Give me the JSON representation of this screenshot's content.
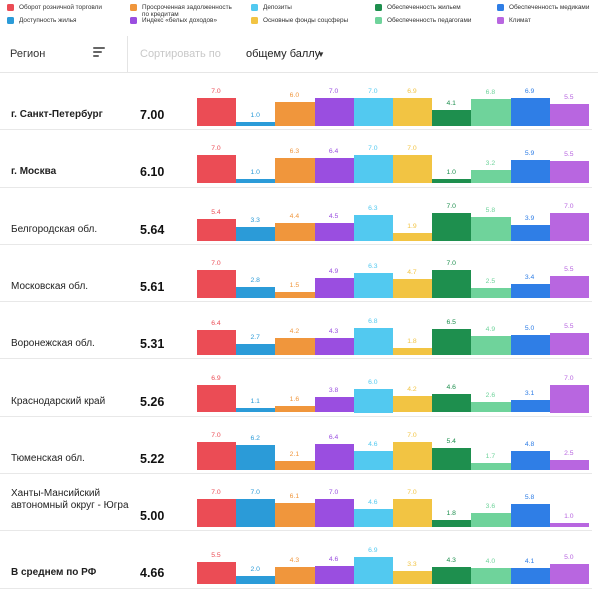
{
  "legend": [
    {
      "label": "Оборот розничной торговли",
      "color": "#eb4c55"
    },
    {
      "label": "Просроченная задолженность по кредитам",
      "color": "#f0963c"
    },
    {
      "label": "Депозиты",
      "color": "#52c9f0"
    },
    {
      "label": "Обеспеченность жильем",
      "color": "#1e8f4e"
    },
    {
      "label": "Обеспеченность медиками",
      "color": "#2f7ee6"
    },
    {
      "label": "Доступность жилья",
      "color": "#2b9bd8"
    },
    {
      "label": "Индекс «белых доходов»",
      "color": "#9a4ee0"
    },
    {
      "label": "Основные фонды соцсферы",
      "color": "#f2c443"
    },
    {
      "label": "Обеспеченность педагогами",
      "color": "#6fd39b"
    },
    {
      "label": "Климат",
      "color": "#b866e0"
    }
  ],
  "header": {
    "region_label": "Регион",
    "filter_icon": "filter-icon",
    "sort_placeholder": "Сортировать по",
    "sort_value": "общему баллу",
    "chevron_icon": "chevron-down-icon"
  },
  "chart_data": {
    "type": "bar",
    "categories": [
      "Оборот розничной торговли",
      "Доступность жилья",
      "Просроченная задолженность по кредитам",
      "Индекс «белых доходов»",
      "Депозиты",
      "Основные фонды соцсферы",
      "Обеспеченность жильем",
      "Обеспеченность педагогами",
      "Обеспеченность медиками",
      "Климат"
    ],
    "colors": [
      "#eb4c55",
      "#2b9bd8",
      "#f0963c",
      "#9a4ee0",
      "#52c9f0",
      "#f2c443",
      "#1e8f4e",
      "#6fd39b",
      "#2f7ee6",
      "#b866e0"
    ],
    "ylim": [
      0,
      7
    ],
    "rows": [
      {
        "region": "г. Санкт-Петербург",
        "score": "7.00",
        "bold": true,
        "values": [
          7.0,
          1.0,
          6.0,
          7.0,
          7.0,
          6.9,
          4.1,
          6.8,
          6.9,
          5.5
        ],
        "labels": [
          "7.0",
          "1.0",
          "6.0",
          "7.0",
          "7.0",
          "6.9",
          "4.1",
          "6.8",
          "6.9",
          "5.5"
        ]
      },
      {
        "region": "г. Москва",
        "score": "6.10",
        "bold": true,
        "values": [
          7.0,
          1.0,
          6.3,
          6.4,
          7.0,
          7.0,
          1.0,
          3.2,
          5.9,
          5.5
        ],
        "labels": [
          "7.0",
          "1.0",
          "6.3",
          "6.4",
          "7.0",
          "7.0",
          "1.0",
          "3.2",
          "5.9",
          "5.5"
        ]
      },
      {
        "region": "Белгородская обл.",
        "score": "5.64",
        "bold": false,
        "values": [
          5.4,
          3.3,
          4.4,
          4.5,
          6.3,
          1.9,
          7.0,
          5.8,
          3.9,
          7.0
        ],
        "labels": [
          "5.4",
          "3.3",
          "4.4",
          "4.5",
          "6.3",
          "1.9",
          "7.0",
          "5.8",
          "3.9",
          "7.0"
        ]
      },
      {
        "region": "Московская обл.",
        "score": "5.61",
        "bold": false,
        "values": [
          7.0,
          2.8,
          1.5,
          4.9,
          6.3,
          4.7,
          7.0,
          2.5,
          3.4,
          5.5
        ],
        "labels": [
          "7.0",
          "2.8",
          "1.5",
          "4.9",
          "6.3",
          "4.7",
          "7.0",
          "2.5",
          "3.4",
          "5.5"
        ]
      },
      {
        "region": "Воронежская обл.",
        "score": "5.31",
        "bold": false,
        "values": [
          6.4,
          2.7,
          4.2,
          4.3,
          6.8,
          1.8,
          6.5,
          4.9,
          5.0,
          5.5
        ],
        "labels": [
          "6.4",
          "2.7",
          "4.2",
          "4.3",
          "6.8",
          "1.8",
          "6.5",
          "4.9",
          "5.0",
          "5.5"
        ]
      },
      {
        "region": "Краснодарский край",
        "score": "5.26",
        "bold": false,
        "values": [
          6.9,
          1.1,
          1.6,
          3.8,
          6.0,
          4.2,
          4.6,
          2.6,
          3.1,
          7.0
        ],
        "labels": [
          "6.9",
          "1.1",
          "1.6",
          "3.8",
          "6.0",
          "4.2",
          "4.6",
          "2.6",
          "3.1",
          "7.0"
        ]
      },
      {
        "region": "Тюменская обл.",
        "score": "5.22",
        "bold": false,
        "values": [
          7.0,
          6.2,
          2.1,
          6.4,
          4.6,
          7.0,
          5.4,
          1.7,
          4.8,
          2.5
        ],
        "labels": [
          "7.0",
          "6.2",
          "2.1",
          "6.4",
          "4.6",
          "7.0",
          "5.4",
          "1.7",
          "4.8",
          "2.5"
        ]
      },
      {
        "region": "Ханты-Мансийский автономный округ - Югра",
        "score": "5.00",
        "bold": false,
        "values": [
          7.0,
          7.0,
          6.1,
          7.0,
          4.6,
          7.0,
          1.8,
          3.6,
          5.8,
          1.0
        ],
        "labels": [
          "7.0",
          "7.0",
          "6.1",
          "7.0",
          "4.6",
          "7.0",
          "1.8",
          "3.6",
          "5.8",
          "1.0"
        ]
      },
      {
        "region": "В среднем по РФ",
        "score": "4.66",
        "bold": true,
        "values": [
          5.5,
          2.0,
          4.3,
          4.6,
          6.9,
          3.3,
          4.3,
          4.0,
          4.1,
          5.0
        ],
        "labels": [
          "5.5",
          "2.0",
          "4.3",
          "4.6",
          "6.9",
          "3.3",
          "4.3",
          "4.0",
          "4.1",
          "5.0"
        ]
      }
    ]
  }
}
